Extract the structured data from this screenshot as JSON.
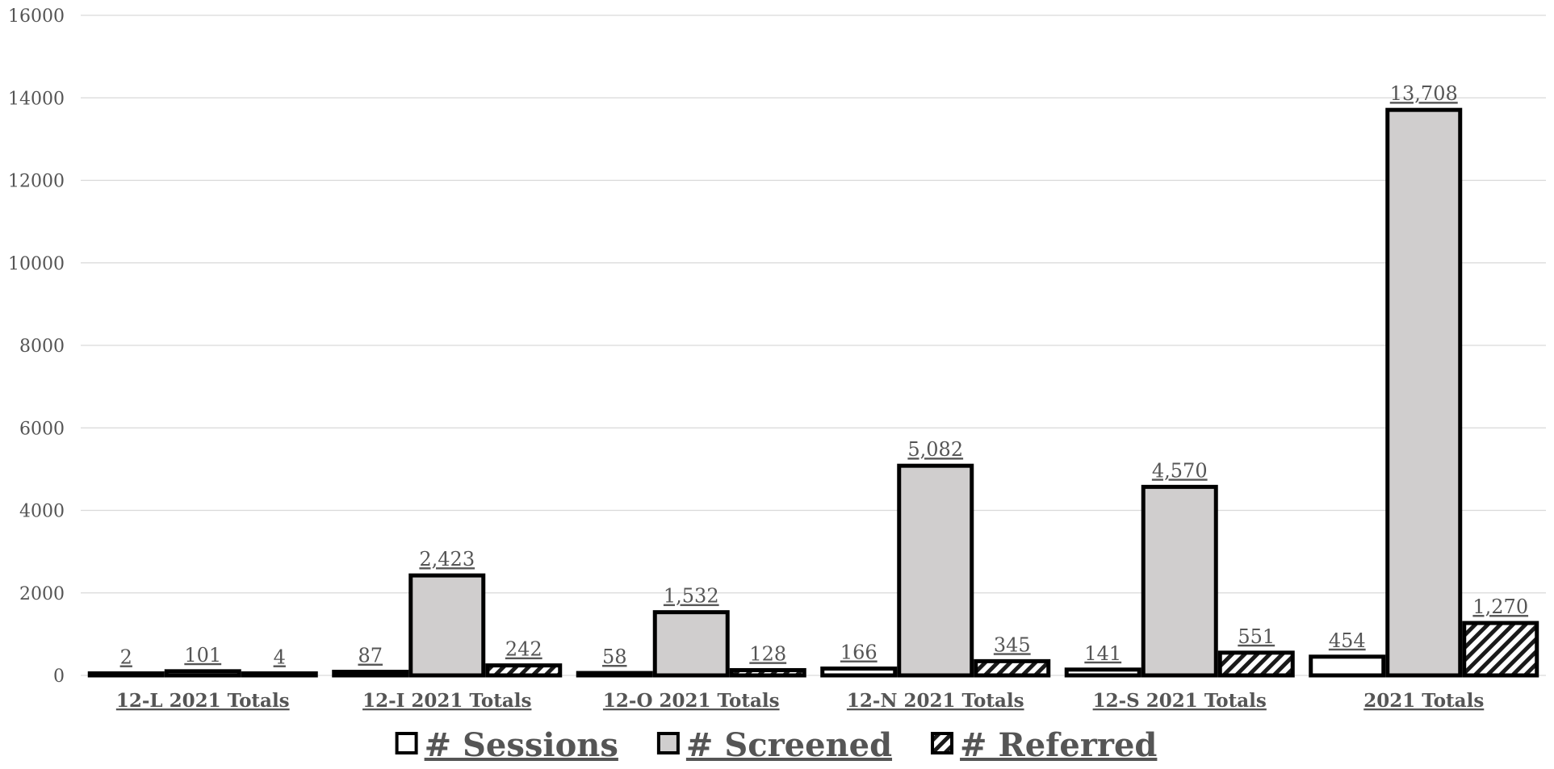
{
  "chart_data": {
    "type": "bar",
    "categories": [
      "12-L 2021 Totals",
      "12-I 2021 Totals",
      "12-O 2021 Totals",
      "12-N 2021 Totals",
      "12-S 2021 Totals",
      "2021 Totals"
    ],
    "series": [
      {
        "name": "# Sessions",
        "values": [
          2,
          87,
          58,
          166,
          141,
          454
        ],
        "labels": [
          "2",
          "87",
          "58",
          "166",
          "141",
          "454"
        ],
        "fill": "#ffffff",
        "pattern": "solid"
      },
      {
        "name": "# Screened",
        "values": [
          101,
          2423,
          1532,
          5082,
          4570,
          13708
        ],
        "labels": [
          "101",
          "2,423",
          "1,532",
          "5,082",
          "4,570",
          "13,708"
        ],
        "fill": "#d0cece",
        "pattern": "solid"
      },
      {
        "name": "# Referred",
        "values": [
          4,
          242,
          128,
          345,
          551,
          1270
        ],
        "labels": [
          "4",
          "242",
          "128",
          "345",
          "551",
          "1,270"
        ],
        "fill": "#ffffff",
        "pattern": "diagonal-hatch"
      }
    ],
    "ylim": [
      0,
      16000
    ],
    "yticks": [
      "0",
      "2000",
      "4000",
      "6000",
      "8000",
      "10000",
      "12000",
      "14000",
      "16000"
    ],
    "grid": true,
    "legend_position": "bottom",
    "outline_color": "#000000",
    "text_color": "#555555",
    "gridline_color": "#d9d9d9"
  }
}
